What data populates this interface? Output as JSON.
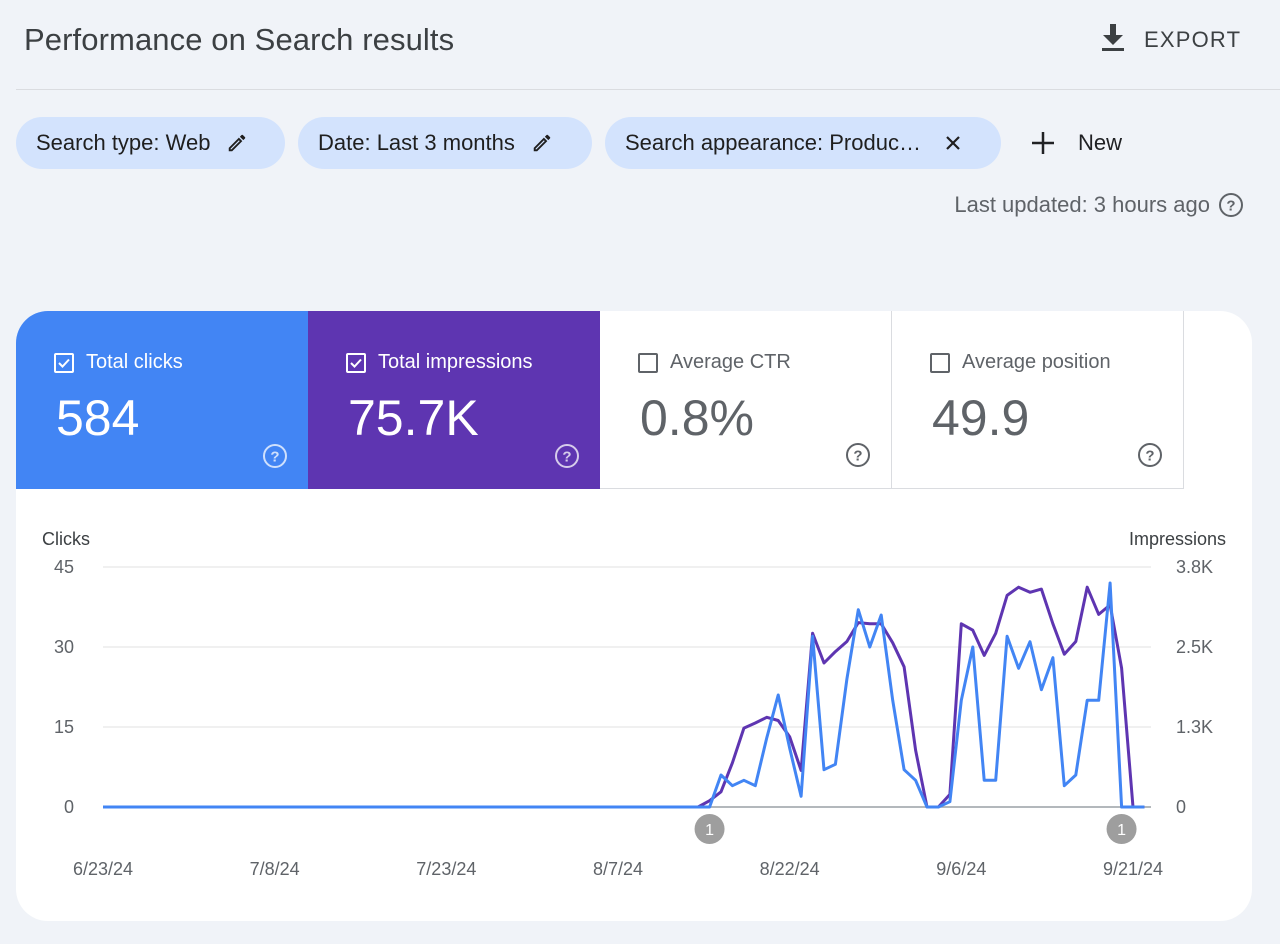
{
  "header": {
    "title": "Performance on Search results",
    "export_label": "EXPORT"
  },
  "filters": {
    "chips": [
      {
        "label": "Search type: Web",
        "icon": "pencil-icon"
      },
      {
        "label": "Date: Last 3 months",
        "icon": "pencil-icon"
      },
      {
        "label": "Search appearance: Produc…",
        "icon": "close-icon"
      }
    ],
    "new_label": "New"
  },
  "status": {
    "last_updated": "Last updated: 3 hours ago"
  },
  "metrics": [
    {
      "label": "Total clicks",
      "value": "584",
      "checked": true,
      "color": "#4285f4"
    },
    {
      "label": "Total impressions",
      "value": "75.7K",
      "checked": true,
      "color": "#5e35b1"
    },
    {
      "label": "Average CTR",
      "value": "0.8%",
      "checked": false
    },
    {
      "label": "Average position",
      "value": "49.9",
      "checked": false
    }
  ],
  "chart_data": {
    "type": "line",
    "left_axis_title": "Clicks",
    "right_axis_title": "Impressions",
    "left_ticks": [
      "0",
      "15",
      "30",
      "45"
    ],
    "right_ticks": [
      "0",
      "1.3K",
      "2.5K",
      "3.8K"
    ],
    "ylim_left": [
      0,
      45
    ],
    "ylim_right": [
      0,
      3800
    ],
    "x_labels": [
      "6/23/24",
      "7/8/24",
      "7/23/24",
      "8/7/24",
      "8/22/24",
      "9/6/24",
      "9/21/24"
    ],
    "grid": true,
    "annotations": [
      {
        "label": "1",
        "date": "8/15/24"
      },
      {
        "label": "1",
        "date": "9/20/24"
      }
    ],
    "series": [
      {
        "name": "Clicks",
        "axis": "left",
        "color": "#4285f4",
        "points": [
          [
            "6/23/24",
            0
          ],
          [
            "8/15/24",
            0
          ],
          [
            "8/16/24",
            6
          ],
          [
            "8/17/24",
            4
          ],
          [
            "8/18/24",
            5
          ],
          [
            "8/19/24",
            4
          ],
          [
            "8/20/24",
            13
          ],
          [
            "8/21/24",
            21
          ],
          [
            "8/22/24",
            11
          ],
          [
            "8/23/24",
            2
          ],
          [
            "8/24/24",
            32
          ],
          [
            "8/25/24",
            7
          ],
          [
            "8/26/24",
            8
          ],
          [
            "8/27/24",
            24
          ],
          [
            "8/28/24",
            37
          ],
          [
            "8/29/24",
            30
          ],
          [
            "8/30/24",
            36
          ],
          [
            "8/31/24",
            20
          ],
          [
            "9/1/24",
            7
          ],
          [
            "9/2/24",
            5
          ],
          [
            "9/3/24",
            0
          ],
          [
            "9/4/24",
            0
          ],
          [
            "9/5/24",
            1
          ],
          [
            "9/6/24",
            20
          ],
          [
            "9/7/24",
            30
          ],
          [
            "9/8/24",
            5
          ],
          [
            "9/9/24",
            5
          ],
          [
            "9/10/24",
            32
          ],
          [
            "9/11/24",
            26
          ],
          [
            "9/12/24",
            31
          ],
          [
            "9/13/24",
            22
          ],
          [
            "9/14/24",
            28
          ],
          [
            "9/15/24",
            4
          ],
          [
            "9/16/24",
            6
          ],
          [
            "9/17/24",
            20
          ],
          [
            "9/18/24",
            20
          ],
          [
            "9/19/24",
            42
          ],
          [
            "9/20/24",
            0
          ],
          [
            "9/22/24",
            0
          ]
        ]
      },
      {
        "name": "Impressions",
        "axis": "right",
        "color": "#5e35b1",
        "points": [
          [
            "6/23/24",
            0
          ],
          [
            "8/14/24",
            0
          ],
          [
            "8/15/24",
            100
          ],
          [
            "8/16/24",
            240
          ],
          [
            "8/17/24",
            700
          ],
          [
            "8/18/24",
            1250
          ],
          [
            "8/19/24",
            1330
          ],
          [
            "8/20/24",
            1420
          ],
          [
            "8/21/24",
            1370
          ],
          [
            "8/22/24",
            1110
          ],
          [
            "8/23/24",
            580
          ],
          [
            "8/24/24",
            2750
          ],
          [
            "8/25/24",
            2280
          ],
          [
            "8/26/24",
            2460
          ],
          [
            "8/27/24",
            2620
          ],
          [
            "8/28/24",
            2920
          ],
          [
            "8/29/24",
            2900
          ],
          [
            "8/30/24",
            2900
          ],
          [
            "8/31/24",
            2600
          ],
          [
            "9/1/24",
            2220
          ],
          [
            "9/2/24",
            900
          ],
          [
            "9/3/24",
            0
          ],
          [
            "9/4/24",
            0
          ],
          [
            "9/5/24",
            200
          ],
          [
            "9/6/24",
            2900
          ],
          [
            "9/7/24",
            2800
          ],
          [
            "9/8/24",
            2400
          ],
          [
            "9/9/24",
            2750
          ],
          [
            "9/10/24",
            3350
          ],
          [
            "9/11/24",
            3480
          ],
          [
            "9/12/24",
            3400
          ],
          [
            "9/13/24",
            3450
          ],
          [
            "9/14/24",
            2900
          ],
          [
            "9/15/24",
            2420
          ],
          [
            "9/16/24",
            2620
          ],
          [
            "9/17/24",
            3480
          ],
          [
            "9/18/24",
            3050
          ],
          [
            "9/19/24",
            3200
          ],
          [
            "9/20/24",
            2200
          ],
          [
            "9/21/24",
            0
          ],
          [
            "9/22/24",
            0
          ]
        ]
      }
    ]
  }
}
